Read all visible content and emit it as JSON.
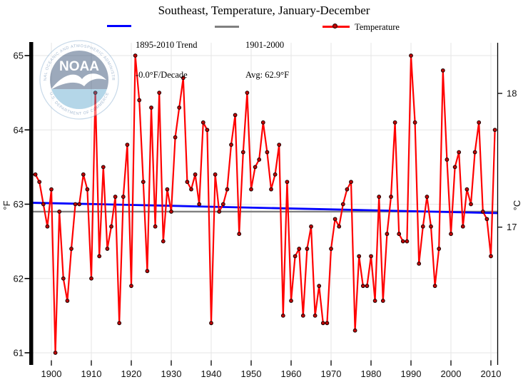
{
  "title": "Southeast, Temperature, January-December",
  "legend": {
    "trend": {
      "line1": "1895-2010 Trend",
      "line2": "-0.0°F/Decade",
      "color": "#0000ff"
    },
    "avg": {
      "line1": "1901-2000",
      "line2": "Avg: 62.9°F",
      "color": "#808080"
    },
    "series": {
      "label": "Temperature",
      "color": "#ff0000"
    }
  },
  "logo": {
    "acronym": "NOAA",
    "ring_top_text": "NATIONAL OCEANIC AND ATMOSPHERIC ADMINISTRATION",
    "ring_bottom_text": "U.S. DEPARTMENT OF COMMERCE"
  },
  "chart_data": {
    "type": "line",
    "title": "Southeast, Temperature, January-December",
    "ylabel_left": "°F",
    "ylabel_right": "°C",
    "x_start_year": 1895,
    "x_end_year": 2011,
    "x_tick_labels": [
      "1900",
      "1910",
      "1920",
      "1930",
      "1940",
      "1950",
      "1960",
      "1970",
      "1980",
      "1990",
      "2000",
      "2010"
    ],
    "y_tick_labels_f": [
      "61",
      "62",
      "63",
      "64",
      "65"
    ],
    "y_tick_labels_c": [
      "17",
      "18"
    ],
    "ylim_f": [
      60.8,
      65.2
    ],
    "grid": true,
    "series_color": "#ff0000",
    "trend": {
      "start_f": 63.02,
      "end_f": 62.88,
      "label": "1895-2010 Trend -0.0°F/Decade",
      "color": "#0000ff"
    },
    "average": {
      "value_f": 62.9,
      "label": "1901-2000 Avg: 62.9°F",
      "color": "#808080"
    },
    "values_f": [
      63.4,
      63.4,
      63.3,
      63.0,
      62.7,
      63.2,
      61.0,
      62.9,
      62.0,
      61.7,
      62.4,
      63.0,
      63.0,
      63.4,
      63.2,
      62.0,
      64.5,
      62.3,
      63.5,
      62.4,
      62.7,
      63.1,
      61.4,
      63.1,
      63.8,
      61.9,
      65.0,
      64.4,
      63.3,
      62.1,
      64.3,
      62.7,
      64.5,
      62.5,
      63.2,
      62.9,
      63.9,
      64.3,
      64.7,
      63.3,
      63.2,
      63.4,
      63.0,
      64.1,
      64.0,
      61.4,
      63.4,
      62.9,
      63.0,
      63.2,
      63.8,
      64.2,
      62.6,
      63.7,
      64.5,
      63.2,
      63.5,
      63.6,
      64.1,
      63.7,
      63.2,
      63.4,
      63.8,
      61.5,
      63.3,
      61.7,
      62.3,
      62.4,
      61.5,
      62.4,
      62.7,
      61.5,
      61.9,
      61.4,
      61.4,
      62.4,
      62.8,
      62.7,
      63.0,
      63.2,
      63.3,
      61.3,
      62.3,
      61.9,
      61.9,
      62.3,
      61.7,
      63.1,
      61.7,
      62.6,
      63.1,
      64.1,
      62.6,
      62.5,
      62.5,
      65.0,
      64.1,
      62.2,
      62.7,
      63.1,
      62.7,
      61.9,
      62.4,
      64.8,
      63.6,
      62.6,
      63.5,
      63.7,
      62.7,
      63.2,
      63.0,
      63.7,
      64.1,
      62.9,
      62.8,
      62.3,
      64.0
    ]
  }
}
